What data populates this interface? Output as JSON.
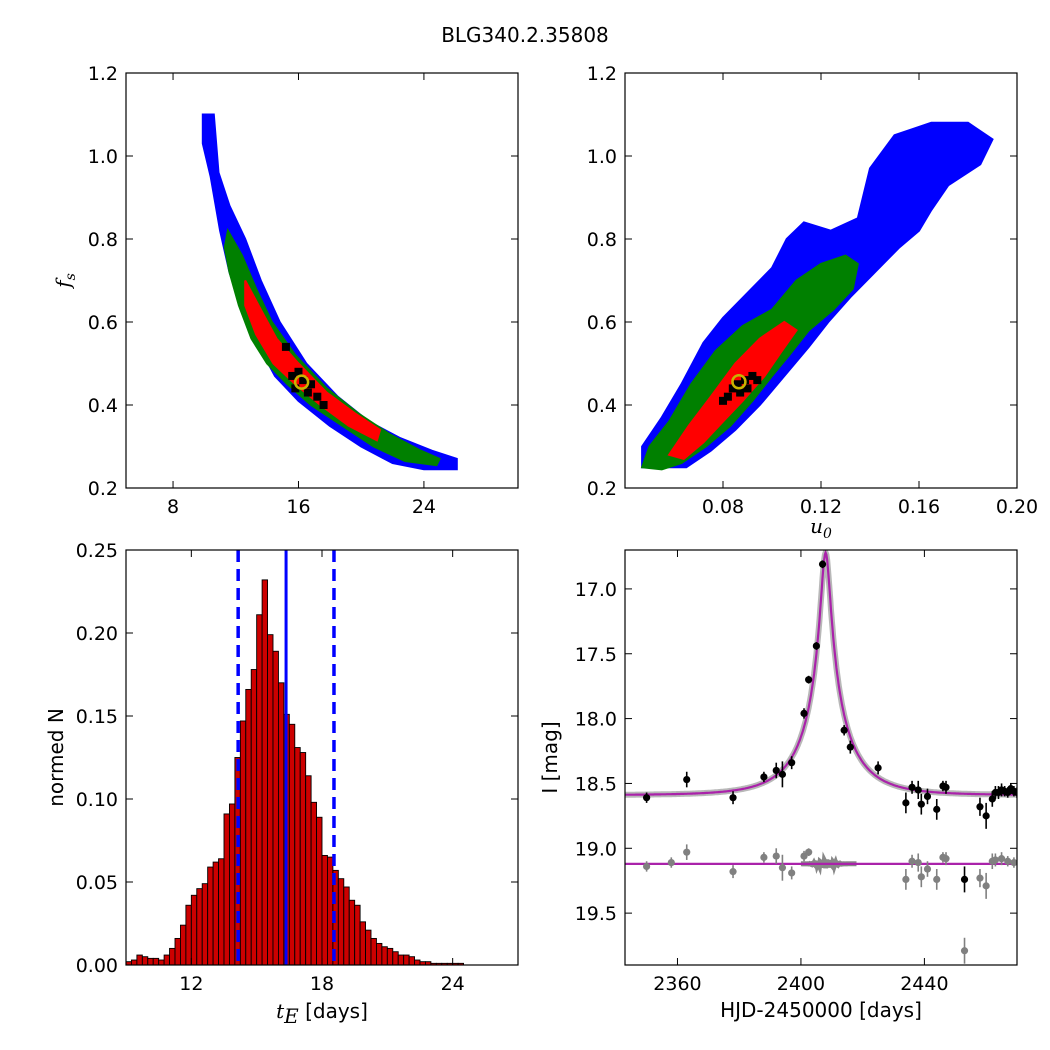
{
  "figure_title": "BLG340.2.35808",
  "chart_data": [
    {
      "panel": "top-left",
      "type": "heatmap",
      "title": "",
      "xlabel": "",
      "ylabel": "f_s",
      "ylabel_main": "f",
      "ylabel_sub": "s",
      "xlim": [
        5,
        30
      ],
      "ylim": [
        0.2,
        1.2
      ],
      "xticks": [
        8,
        16,
        24
      ],
      "yticks": [
        0.2,
        0.4,
        0.6,
        0.8,
        1.0,
        1.2
      ],
      "ytick_labels": [
        "0.2",
        "0.4",
        "0.6",
        "0.8",
        "1.0",
        "1.2"
      ],
      "regions": [
        {
          "level": "3-sigma",
          "color": "#0000ff",
          "polygon": [
            [
              9.9,
              1.1
            ],
            [
              10.6,
              1.1
            ],
            [
              10.9,
              0.96
            ],
            [
              11.6,
              0.88
            ],
            [
              12.6,
              0.8
            ],
            [
              13.6,
              0.7
            ],
            [
              14.8,
              0.6
            ],
            [
              16.5,
              0.5
            ],
            [
              18.5,
              0.42
            ],
            [
              20.5,
              0.36
            ],
            [
              22.5,
              0.32
            ],
            [
              24.5,
              0.29
            ],
            [
              26.1,
              0.27
            ],
            [
              26.1,
              0.245
            ],
            [
              24,
              0.245
            ],
            [
              22,
              0.26
            ],
            [
              20,
              0.3
            ],
            [
              18,
              0.35
            ],
            [
              16,
              0.41
            ],
            [
              14.5,
              0.47
            ],
            [
              13.5,
              0.54
            ],
            [
              12.5,
              0.62
            ],
            [
              11.6,
              0.72
            ],
            [
              11,
              0.82
            ],
            [
              10.4,
              0.95
            ],
            [
              9.9,
              1.03
            ]
          ]
        },
        {
          "level": "2-sigma",
          "color": "#008000",
          "polygon": [
            [
              11.5,
              0.82
            ],
            [
              12.4,
              0.76
            ],
            [
              13.3,
              0.68
            ],
            [
              14.3,
              0.6
            ],
            [
              15.8,
              0.52
            ],
            [
              17.8,
              0.44
            ],
            [
              19.8,
              0.38
            ],
            [
              21.8,
              0.33
            ],
            [
              23.8,
              0.29
            ],
            [
              25,
              0.27
            ],
            [
              24.8,
              0.255
            ],
            [
              22.8,
              0.265
            ],
            [
              20.8,
              0.3
            ],
            [
              18.8,
              0.35
            ],
            [
              16.8,
              0.4
            ],
            [
              15.3,
              0.45
            ],
            [
              14,
              0.5
            ],
            [
              13,
              0.56
            ],
            [
              12.2,
              0.64
            ],
            [
              11.6,
              0.72
            ],
            [
              11.3,
              0.78
            ]
          ]
        },
        {
          "level": "1-sigma",
          "color": "#ff0000",
          "polygon": [
            [
              12.6,
              0.7
            ],
            [
              13.6,
              0.63
            ],
            [
              14.6,
              0.56
            ],
            [
              16,
              0.5
            ],
            [
              17.8,
              0.43
            ],
            [
              19.6,
              0.38
            ],
            [
              21.2,
              0.34
            ],
            [
              21,
              0.315
            ],
            [
              19.2,
              0.35
            ],
            [
              17.4,
              0.4
            ],
            [
              15.8,
              0.45
            ],
            [
              14.4,
              0.5
            ],
            [
              13.3,
              0.57
            ],
            [
              12.6,
              0.64
            ]
          ]
        }
      ],
      "black_points": [
        [
          15.2,
          0.54
        ],
        [
          15.6,
          0.47
        ],
        [
          16,
          0.48
        ],
        [
          16.3,
          0.46
        ],
        [
          16.8,
          0.45
        ],
        [
          17.2,
          0.42
        ],
        [
          17.6,
          0.4
        ],
        [
          15.8,
          0.44
        ],
        [
          16.6,
          0.43
        ]
      ],
      "best_fit": {
        "x": 16.2,
        "y": 0.455
      }
    },
    {
      "panel": "top-right",
      "type": "heatmap",
      "title": "",
      "xlabel": "u_0",
      "xlabel_main": "u",
      "xlabel_sub": "0",
      "ylabel": "",
      "xlim": [
        0.04,
        0.2
      ],
      "ylim": [
        0.2,
        1.2
      ],
      "xticks": [
        0.08,
        0.12,
        0.16,
        0.2
      ],
      "xtick_labels": [
        "0.08",
        "0.12",
        "0.16",
        "0.20"
      ],
      "yticks": [
        0.2,
        0.4,
        0.6,
        0.8,
        1.0,
        1.2
      ],
      "ytick_labels": [
        "0.2",
        "0.4",
        "0.6",
        "0.8",
        "1.0",
        "1.2"
      ],
      "regions": [
        {
          "level": "3-sigma",
          "color": "#0000ff",
          "polygon": [
            [
              0.047,
              0.25
            ],
            [
              0.047,
              0.3
            ],
            [
              0.055,
              0.37
            ],
            [
              0.063,
              0.45
            ],
            [
              0.072,
              0.55
            ],
            [
              0.08,
              0.61
            ],
            [
              0.09,
              0.67
            ],
            [
              0.1,
              0.73
            ],
            [
              0.106,
              0.8
            ],
            [
              0.113,
              0.84
            ],
            [
              0.124,
              0.82
            ],
            [
              0.135,
              0.85
            ],
            [
              0.14,
              0.97
            ],
            [
              0.15,
              1.05
            ],
            [
              0.165,
              1.08
            ],
            [
              0.18,
              1.08
            ],
            [
              0.19,
              1.04
            ],
            [
              0.185,
              0.98
            ],
            [
              0.172,
              0.93
            ],
            [
              0.165,
              0.87
            ],
            [
              0.16,
              0.82
            ],
            [
              0.152,
              0.78
            ],
            [
              0.142,
              0.72
            ],
            [
              0.132,
              0.66
            ],
            [
              0.123,
              0.6
            ],
            [
              0.115,
              0.54
            ],
            [
              0.105,
              0.47
            ],
            [
              0.095,
              0.4
            ],
            [
              0.085,
              0.34
            ],
            [
              0.075,
              0.29
            ],
            [
              0.065,
              0.25
            ]
          ]
        },
        {
          "level": "2-sigma",
          "color": "#008000",
          "polygon": [
            [
              0.047,
              0.25
            ],
            [
              0.05,
              0.3
            ],
            [
              0.058,
              0.36
            ],
            [
              0.067,
              0.45
            ],
            [
              0.077,
              0.53
            ],
            [
              0.088,
              0.59
            ],
            [
              0.1,
              0.63
            ],
            [
              0.11,
              0.7
            ],
            [
              0.12,
              0.74
            ],
            [
              0.13,
              0.76
            ],
            [
              0.135,
              0.74
            ],
            [
              0.133,
              0.68
            ],
            [
              0.125,
              0.63
            ],
            [
              0.115,
              0.58
            ],
            [
              0.107,
              0.52
            ],
            [
              0.1,
              0.47
            ],
            [
              0.092,
              0.41
            ],
            [
              0.083,
              0.35
            ],
            [
              0.073,
              0.3
            ],
            [
              0.063,
              0.26
            ],
            [
              0.055,
              0.245
            ]
          ]
        },
        {
          "level": "1-sigma",
          "color": "#ff0000",
          "polygon": [
            [
              0.058,
              0.28
            ],
            [
              0.066,
              0.35
            ],
            [
              0.075,
              0.42
            ],
            [
              0.085,
              0.5
            ],
            [
              0.095,
              0.56
            ],
            [
              0.105,
              0.6
            ],
            [
              0.11,
              0.58
            ],
            [
              0.104,
              0.53
            ],
            [
              0.097,
              0.47
            ],
            [
              0.088,
              0.41
            ],
            [
              0.08,
              0.36
            ],
            [
              0.072,
              0.31
            ],
            [
              0.064,
              0.27
            ]
          ]
        }
      ],
      "black_points": [
        [
          0.082,
          0.42
        ],
        [
          0.084,
          0.44
        ],
        [
          0.086,
          0.45
        ],
        [
          0.089,
          0.46
        ],
        [
          0.092,
          0.47
        ],
        [
          0.094,
          0.46
        ],
        [
          0.087,
          0.43
        ],
        [
          0.08,
          0.41
        ],
        [
          0.09,
          0.44
        ]
      ],
      "best_fit": {
        "x": 0.0865,
        "y": 0.456
      }
    },
    {
      "panel": "bottom-left",
      "type": "bar",
      "title": "",
      "xlabel_main": "t",
      "xlabel_sub": "E",
      "xlabel_units": "[days]",
      "ylabel": "normed N",
      "xlim": [
        9,
        27
      ],
      "ylim": [
        0,
        0.25
      ],
      "xticks": [
        12,
        18,
        24
      ],
      "yticks": [
        0,
        0.05,
        0.1,
        0.15,
        0.2,
        0.25
      ],
      "ytick_labels": [
        "0.00",
        "0.05",
        "0.10",
        "0.15",
        "0.20",
        "0.25"
      ],
      "bin_start": 9,
      "bin_width": 0.25,
      "values": [
        0.002,
        0.003,
        0.006,
        0.005,
        0.004,
        0.004,
        0.003,
        0.006,
        0.01,
        0.016,
        0.024,
        0.036,
        0.042,
        0.046,
        0.049,
        0.059,
        0.062,
        0.064,
        0.091,
        0.097,
        0.125,
        0.147,
        0.166,
        0.178,
        0.211,
        0.232,
        0.199,
        0.189,
        0.17,
        0.151,
        0.145,
        0.131,
        0.128,
        0.114,
        0.098,
        0.089,
        0.066,
        0.065,
        0.057,
        0.052,
        0.047,
        0.039,
        0.036,
        0.026,
        0.021,
        0.016,
        0.013,
        0.011,
        0.01,
        0.008,
        0.006,
        0.006,
        0.005,
        0.003,
        0.002,
        0.002,
        0.001,
        0.001,
        0.001,
        0.001,
        0.001,
        0.001,
        0.0,
        0.0
      ],
      "median": 16.35,
      "interval": [
        14.15,
        18.55
      ],
      "bar_color": "#cc0000",
      "line_color": "#0000ff"
    },
    {
      "panel": "bottom-right",
      "type": "scatter",
      "title": "",
      "xlabel": "HJD-2450000 [days]",
      "ylabel": "I [mag]",
      "xlim": [
        2343,
        2470
      ],
      "ylim": [
        19.9,
        16.7
      ],
      "y_inverted": true,
      "xticks": [
        2360,
        2400,
        2440
      ],
      "yticks": [
        17.0,
        17.5,
        18.0,
        18.5,
        19.0,
        19.5
      ],
      "ytick_labels": [
        "17.0",
        "17.5",
        "18.0",
        "18.5",
        "19.0",
        "19.5"
      ],
      "model": {
        "baseline": 18.59,
        "peak_time": 2408,
        "peak_mag": 16.72,
        "tE": 16.3,
        "u0": 0.086,
        "color": "#aa22aa"
      },
      "residual_baseline": 19.12,
      "series": [
        {
          "color": "#000000",
          "points": [
            [
              2350,
              18.61,
              0.04
            ],
            [
              2363,
              18.47,
              0.06
            ],
            [
              2378,
              18.61,
              0.05
            ],
            [
              2388,
              18.45,
              0.04
            ],
            [
              2392,
              18.4,
              0.06
            ],
            [
              2394,
              18.43,
              0.1
            ],
            [
              2397,
              18.34,
              0.05
            ],
            [
              2401,
              17.96,
              0.04
            ],
            [
              2402.5,
              17.7,
              0.03
            ],
            [
              2405,
              17.44,
              0.03
            ],
            [
              2407,
              16.81,
              0.03
            ],
            [
              2414,
              18.09,
              0.04
            ],
            [
              2416,
              18.22,
              0.05
            ],
            [
              2425,
              18.38,
              0.05
            ],
            [
              2434,
              18.65,
              0.08
            ],
            [
              2436,
              18.53,
              0.05
            ],
            [
              2438,
              18.55,
              0.07
            ],
            [
              2439,
              18.66,
              0.08
            ],
            [
              2441,
              18.6,
              0.06
            ],
            [
              2444,
              18.7,
              0.08
            ],
            [
              2446,
              18.52,
              0.04
            ],
            [
              2447,
              18.53,
              0.05
            ],
            [
              2453,
              19.24,
              0.1
            ],
            [
              2458,
              18.68,
              0.07
            ],
            [
              2460,
              18.75,
              0.1
            ],
            [
              2462,
              18.62,
              0.06
            ],
            [
              2463,
              18.57,
              0.05
            ],
            [
              2464,
              18.57,
              0.05
            ],
            [
              2465,
              18.55,
              0.05
            ],
            [
              2466,
              18.56,
              0.04
            ],
            [
              2467,
              18.57,
              0.04
            ],
            [
              2468,
              18.54,
              0.04
            ],
            [
              2469,
              18.56,
              0.04
            ],
            [
              2470,
              18.57,
              0.04
            ]
          ]
        },
        {
          "color": "#808080",
          "points": [
            [
              2350,
              19.14,
              0.04
            ],
            [
              2358,
              19.11,
              0.04
            ],
            [
              2363,
              19.03,
              0.06
            ],
            [
              2378,
              19.18,
              0.05
            ],
            [
              2388,
              19.07,
              0.04
            ],
            [
              2392,
              19.06,
              0.06
            ],
            [
              2394,
              19.15,
              0.1
            ],
            [
              2397,
              19.19,
              0.05
            ],
            [
              2401,
              19.06,
              0.04
            ],
            [
              2402.5,
              19.03,
              0.03
            ],
            [
              2434,
              19.24,
              0.08
            ],
            [
              2436,
              19.1,
              0.05
            ],
            [
              2438,
              19.11,
              0.07
            ],
            [
              2439,
              19.22,
              0.08
            ],
            [
              2441,
              19.16,
              0.06
            ],
            [
              2444,
              19.24,
              0.08
            ],
            [
              2446,
              19.07,
              0.04
            ],
            [
              2447,
              19.08,
              0.05
            ],
            [
              2453,
              19.79,
              0.1
            ],
            [
              2458,
              19.23,
              0.07
            ],
            [
              2460,
              19.29,
              0.1
            ],
            [
              2462,
              19.1,
              0.06
            ],
            [
              2463,
              19.09,
              0.05
            ],
            [
              2465,
              19.08,
              0.05
            ],
            [
              2467,
              19.1,
              0.04
            ],
            [
              2469,
              19.11,
              0.04
            ]
          ]
        }
      ]
    }
  ]
}
